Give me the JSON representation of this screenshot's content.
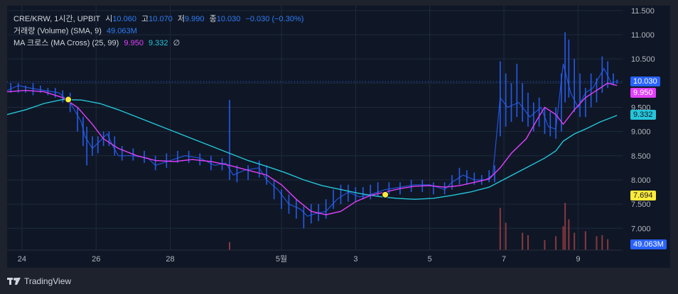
{
  "legend": {
    "symbol": "CRE/KRW, 1시간, UPBIT",
    "open_label": "시",
    "open": "10.060",
    "high_label": "고",
    "high": "10.070",
    "low_label": "저",
    "low": "9.990",
    "close_label": "종",
    "close": "10.030",
    "change": "−0.030 (−0.30%)",
    "volume_title": "거래량 (Volume) (SMA, 9)",
    "volume_value": "49.063M",
    "ma_title": "MA 크로스 (MA Cross) (25, 99)",
    "ma_fast": "9.950",
    "ma_slow": "9.332",
    "ma_extra": "∅"
  },
  "price_tags": {
    "close": "10.030",
    "ma_fast": "9.950",
    "ma_slow": "9.332",
    "cross": "7.694",
    "volume": "49.063M"
  },
  "footer": {
    "brand": "TradingView"
  },
  "colors": {
    "up": "#2962ff",
    "down": "#2962ff",
    "wick_up": "#ef5350",
    "ma_fast": "#e040fb",
    "ma_slow": "#26c6da",
    "cross": "#ffeb3b",
    "close_tag": "#2962ff",
    "grid": "#1f2a3d"
  },
  "chart_data": {
    "type": "candlestick",
    "yticks": [
      7.0,
      7.5,
      8.0,
      8.5,
      9.0,
      9.5,
      10.0,
      10.5,
      11.0,
      11.5
    ],
    "ytick_labels": [
      "7.000",
      "7.500",
      "8.000",
      "8.500",
      "9.000",
      "9.500",
      "10.000",
      "10.500",
      "11.000",
      "11.500"
    ],
    "ylim": [
      6.55,
      11.6
    ],
    "xlim": [
      0,
      16.6
    ],
    "xticks": [
      {
        "x": 0.4,
        "label": "24"
      },
      {
        "x": 2.4,
        "label": "26"
      },
      {
        "x": 4.4,
        "label": "28"
      },
      {
        "x": 7.4,
        "label": "5월"
      },
      {
        "x": 9.4,
        "label": "3"
      },
      {
        "x": 11.4,
        "label": "5"
      },
      {
        "x": 13.4,
        "label": "7"
      },
      {
        "x": 15.4,
        "label": "9"
      }
    ],
    "close_path": [
      [
        0,
        9.85
      ],
      [
        0.3,
        9.95
      ],
      [
        0.6,
        9.9
      ],
      [
        1.0,
        9.85
      ],
      [
        1.4,
        9.8
      ],
      [
        1.7,
        9.6
      ],
      [
        2.0,
        9.2
      ],
      [
        2.1,
        8.9
      ],
      [
        2.3,
        8.65
      ],
      [
        2.5,
        8.8
      ],
      [
        2.7,
        8.95
      ],
      [
        2.85,
        8.7
      ],
      [
        3.0,
        8.5
      ],
      [
        3.4,
        8.5
      ],
      [
        3.8,
        8.45
      ],
      [
        4.0,
        8.3
      ],
      [
        4.4,
        8.4
      ],
      [
        4.8,
        8.5
      ],
      [
        5.2,
        8.45
      ],
      [
        5.6,
        8.3
      ],
      [
        5.9,
        8.35
      ],
      [
        6.1,
        8.1
      ],
      [
        6.4,
        8.2
      ],
      [
        6.8,
        8.25
      ],
      [
        7.0,
        8.0
      ],
      [
        7.3,
        7.8
      ],
      [
        7.6,
        7.5
      ],
      [
        7.9,
        7.4
      ],
      [
        8.1,
        7.25
      ],
      [
        8.3,
        7.3
      ],
      [
        8.6,
        7.35
      ],
      [
        8.9,
        7.6
      ],
      [
        9.2,
        7.75
      ],
      [
        9.5,
        7.65
      ],
      [
        9.8,
        7.7
      ],
      [
        10.2,
        7.8
      ],
      [
        10.6,
        7.85
      ],
      [
        11.0,
        7.9
      ],
      [
        11.4,
        7.9
      ],
      [
        11.8,
        7.8
      ],
      [
        12.0,
        7.95
      ],
      [
        12.3,
        8.1
      ],
      [
        12.6,
        8.0
      ],
      [
        12.9,
        8.0
      ],
      [
        13.1,
        8.1
      ],
      [
        13.3,
        9.7
      ],
      [
        13.5,
        9.5
      ],
      [
        13.8,
        9.6
      ],
      [
        14.1,
        9.3
      ],
      [
        14.4,
        9.5
      ],
      [
        14.6,
        9.1
      ],
      [
        14.8,
        9.05
      ],
      [
        15.0,
        10.4
      ],
      [
        15.2,
        9.8
      ],
      [
        15.4,
        9.5
      ],
      [
        15.6,
        9.8
      ],
      [
        15.8,
        9.9
      ],
      [
        16.1,
        10.3
      ],
      [
        16.3,
        10.0
      ],
      [
        16.4,
        10.03
      ]
    ],
    "candles": [
      {
        "x": 0.1,
        "h": 10.0,
        "l": 9.8
      },
      {
        "x": 0.3,
        "h": 10.0,
        "l": 9.8
      },
      {
        "x": 0.5,
        "h": 9.95,
        "l": 9.8
      },
      {
        "x": 0.7,
        "h": 10.0,
        "l": 9.75
      },
      {
        "x": 0.9,
        "h": 9.95,
        "l": 9.8
      },
      {
        "x": 1.1,
        "h": 9.9,
        "l": 9.75
      },
      {
        "x": 1.3,
        "h": 9.9,
        "l": 9.7
      },
      {
        "x": 1.5,
        "h": 9.85,
        "l": 9.6
      },
      {
        "x": 1.7,
        "h": 9.8,
        "l": 9.4
      },
      {
        "x": 1.9,
        "h": 9.5,
        "l": 9.0
      },
      {
        "x": 2.05,
        "h": 9.3,
        "l": 8.7
      },
      {
        "x": 2.15,
        "h": 9.1,
        "l": 8.3
      },
      {
        "x": 2.3,
        "h": 8.9,
        "l": 8.5
      },
      {
        "x": 2.45,
        "h": 8.9,
        "l": 8.55
      },
      {
        "x": 2.6,
        "h": 9.0,
        "l": 8.7
      },
      {
        "x": 2.75,
        "h": 9.0,
        "l": 8.7
      },
      {
        "x": 2.9,
        "h": 8.9,
        "l": 8.5
      },
      {
        "x": 3.1,
        "h": 8.7,
        "l": 8.4
      },
      {
        "x": 3.4,
        "h": 8.65,
        "l": 8.4
      },
      {
        "x": 3.7,
        "h": 8.6,
        "l": 8.35
      },
      {
        "x": 4.0,
        "h": 8.5,
        "l": 8.2
      },
      {
        "x": 4.3,
        "h": 8.55,
        "l": 8.25
      },
      {
        "x": 4.6,
        "h": 8.6,
        "l": 8.35
      },
      {
        "x": 4.9,
        "h": 8.6,
        "l": 8.35
      },
      {
        "x": 5.2,
        "h": 8.55,
        "l": 8.3
      },
      {
        "x": 5.5,
        "h": 8.5,
        "l": 8.2
      },
      {
        "x": 5.8,
        "h": 8.45,
        "l": 8.2
      },
      {
        "x": 6.0,
        "h": 9.65,
        "l": 8.0
      },
      {
        "x": 6.2,
        "h": 8.3,
        "l": 7.95
      },
      {
        "x": 6.5,
        "h": 8.3,
        "l": 8.0
      },
      {
        "x": 6.8,
        "h": 8.4,
        "l": 8.05
      },
      {
        "x": 7.0,
        "h": 8.3,
        "l": 7.9
      },
      {
        "x": 7.2,
        "h": 8.0,
        "l": 7.6
      },
      {
        "x": 7.4,
        "h": 7.8,
        "l": 7.4
      },
      {
        "x": 7.6,
        "h": 7.7,
        "l": 7.3
      },
      {
        "x": 7.8,
        "h": 7.6,
        "l": 7.2
      },
      {
        "x": 8.0,
        "h": 7.45,
        "l": 7.0
      },
      {
        "x": 8.2,
        "h": 7.5,
        "l": 7.1
      },
      {
        "x": 8.4,
        "h": 7.5,
        "l": 7.15
      },
      {
        "x": 8.6,
        "h": 7.6,
        "l": 7.2
      },
      {
        "x": 8.8,
        "h": 7.8,
        "l": 7.4
      },
      {
        "x": 9.0,
        "h": 7.9,
        "l": 7.5
      },
      {
        "x": 9.2,
        "h": 7.9,
        "l": 7.55
      },
      {
        "x": 9.4,
        "h": 7.85,
        "l": 7.55
      },
      {
        "x": 9.6,
        "h": 7.85,
        "l": 7.6
      },
      {
        "x": 9.8,
        "h": 7.9,
        "l": 7.6
      },
      {
        "x": 10.0,
        "h": 7.95,
        "l": 7.65
      },
      {
        "x": 10.3,
        "h": 7.95,
        "l": 7.7
      },
      {
        "x": 10.6,
        "h": 7.95,
        "l": 7.7
      },
      {
        "x": 10.9,
        "h": 8.0,
        "l": 7.75
      },
      {
        "x": 11.2,
        "h": 8.0,
        "l": 7.75
      },
      {
        "x": 11.5,
        "h": 7.95,
        "l": 7.7
      },
      {
        "x": 11.8,
        "h": 7.95,
        "l": 7.7
      },
      {
        "x": 12.0,
        "h": 8.1,
        "l": 7.8
      },
      {
        "x": 12.2,
        "h": 8.25,
        "l": 7.9
      },
      {
        "x": 12.4,
        "h": 8.2,
        "l": 7.9
      },
      {
        "x": 12.6,
        "h": 8.15,
        "l": 7.9
      },
      {
        "x": 12.8,
        "h": 8.1,
        "l": 7.9
      },
      {
        "x": 13.0,
        "h": 8.2,
        "l": 7.95
      },
      {
        "x": 13.15,
        "h": 8.3,
        "l": 7.95
      },
      {
        "x": 13.3,
        "h": 10.45,
        "l": 8.9
      },
      {
        "x": 13.45,
        "h": 10.2,
        "l": 9.1
      },
      {
        "x": 13.6,
        "h": 10.0,
        "l": 9.2
      },
      {
        "x": 13.75,
        "h": 10.4,
        "l": 9.3
      },
      {
        "x": 13.9,
        "h": 10.0,
        "l": 9.2
      },
      {
        "x": 14.05,
        "h": 9.8,
        "l": 9.1
      },
      {
        "x": 14.2,
        "h": 9.6,
        "l": 9.0
      },
      {
        "x": 14.35,
        "h": 9.7,
        "l": 9.1
      },
      {
        "x": 14.5,
        "h": 9.5,
        "l": 8.95
      },
      {
        "x": 14.65,
        "h": 9.4,
        "l": 8.9
      },
      {
        "x": 14.8,
        "h": 9.5,
        "l": 8.85
      },
      {
        "x": 14.95,
        "h": 10.2,
        "l": 9.0
      },
      {
        "x": 15.05,
        "h": 11.05,
        "l": 9.6
      },
      {
        "x": 15.15,
        "h": 10.9,
        "l": 9.7
      },
      {
        "x": 15.3,
        "h": 10.5,
        "l": 9.4
      },
      {
        "x": 15.45,
        "h": 10.2,
        "l": 9.3
      },
      {
        "x": 15.6,
        "h": 9.9,
        "l": 9.3
      },
      {
        "x": 15.75,
        "h": 10.2,
        "l": 9.5
      },
      {
        "x": 15.9,
        "h": 10.1,
        "l": 9.6
      },
      {
        "x": 16.05,
        "h": 10.55,
        "l": 9.8
      },
      {
        "x": 16.2,
        "h": 10.45,
        "l": 9.9
      },
      {
        "x": 16.35,
        "h": 10.2,
        "l": 9.95
      },
      {
        "x": 16.45,
        "h": 10.07,
        "l": 9.99
      }
    ],
    "ma_fast": [
      [
        0,
        9.82
      ],
      [
        0.5,
        9.85
      ],
      [
        1.0,
        9.82
      ],
      [
        1.5,
        9.7
      ],
      [
        1.9,
        9.5
      ],
      [
        2.3,
        9.15
      ],
      [
        2.6,
        8.85
      ],
      [
        3.0,
        8.65
      ],
      [
        3.5,
        8.5
      ],
      [
        4.0,
        8.4
      ],
      [
        4.5,
        8.38
      ],
      [
        5.0,
        8.42
      ],
      [
        5.5,
        8.38
      ],
      [
        6.0,
        8.3
      ],
      [
        6.5,
        8.2
      ],
      [
        7.0,
        8.1
      ],
      [
        7.4,
        7.9
      ],
      [
        7.8,
        7.6
      ],
      [
        8.2,
        7.35
      ],
      [
        8.6,
        7.28
      ],
      [
        9.0,
        7.35
      ],
      [
        9.4,
        7.55
      ],
      [
        9.8,
        7.68
      ],
      [
        10.2,
        7.75
      ],
      [
        10.6,
        7.82
      ],
      [
        11.0,
        7.87
      ],
      [
        11.4,
        7.88
      ],
      [
        11.8,
        7.85
      ],
      [
        12.2,
        7.88
      ],
      [
        12.6,
        7.95
      ],
      [
        13.0,
        8.02
      ],
      [
        13.3,
        8.25
      ],
      [
        13.6,
        8.55
      ],
      [
        14.0,
        8.85
      ],
      [
        14.3,
        9.25
      ],
      [
        14.5,
        9.5
      ],
      [
        14.8,
        9.35
      ],
      [
        15.0,
        9.15
      ],
      [
        15.3,
        9.45
      ],
      [
        15.6,
        9.7
      ],
      [
        15.9,
        9.85
      ],
      [
        16.2,
        10.0
      ],
      [
        16.45,
        9.95
      ]
    ],
    "ma_slow": [
      [
        0,
        9.35
      ],
      [
        0.5,
        9.45
      ],
      [
        1.0,
        9.58
      ],
      [
        1.5,
        9.66
      ],
      [
        2.0,
        9.65
      ],
      [
        2.5,
        9.58
      ],
      [
        3.0,
        9.45
      ],
      [
        3.5,
        9.3
      ],
      [
        4.0,
        9.15
      ],
      [
        4.5,
        9.0
      ],
      [
        5.0,
        8.85
      ],
      [
        5.5,
        8.7
      ],
      [
        6.0,
        8.55
      ],
      [
        6.5,
        8.4
      ],
      [
        7.0,
        8.28
      ],
      [
        7.5,
        8.15
      ],
      [
        8.0,
        8.0
      ],
      [
        8.5,
        7.88
      ],
      [
        9.0,
        7.8
      ],
      [
        9.5,
        7.72
      ],
      [
        10.0,
        7.66
      ],
      [
        10.5,
        7.62
      ],
      [
        11.0,
        7.6
      ],
      [
        11.5,
        7.62
      ],
      [
        12.0,
        7.68
      ],
      [
        12.5,
        7.75
      ],
      [
        13.0,
        7.85
      ],
      [
        13.5,
        8.05
      ],
      [
        14.0,
        8.25
      ],
      [
        14.5,
        8.45
      ],
      [
        14.8,
        8.6
      ],
      [
        15.0,
        8.8
      ],
      [
        15.3,
        8.95
      ],
      [
        15.6,
        9.05
      ],
      [
        16.0,
        9.2
      ],
      [
        16.45,
        9.332
      ]
    ],
    "cross_points": [
      [
        1.65,
        9.66
      ],
      [
        10.2,
        7.694
      ]
    ],
    "volume_bars": [
      {
        "x": 6.0,
        "v": 0.16
      },
      {
        "x": 13.3,
        "v": 0.85
      },
      {
        "x": 13.45,
        "v": 0.55
      },
      {
        "x": 13.9,
        "v": 0.35
      },
      {
        "x": 14.05,
        "v": 0.3
      },
      {
        "x": 14.5,
        "v": 0.2
      },
      {
        "x": 14.8,
        "v": 0.28
      },
      {
        "x": 15.0,
        "v": 0.48
      },
      {
        "x": 15.05,
        "v": 0.95
      },
      {
        "x": 15.15,
        "v": 0.62
      },
      {
        "x": 15.3,
        "v": 0.35
      },
      {
        "x": 15.6,
        "v": 0.38
      },
      {
        "x": 15.9,
        "v": 0.28
      },
      {
        "x": 16.05,
        "v": 0.3
      },
      {
        "x": 16.2,
        "v": 0.22
      }
    ]
  }
}
